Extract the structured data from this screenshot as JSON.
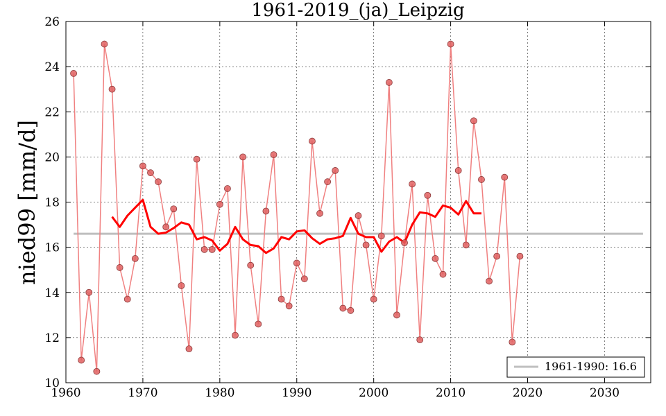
{
  "chart_data": {
    "type": "line",
    "title": "1961-2019_(ja)_Leipzig",
    "xlabel": "",
    "ylabel": "nied99 [mm/d]",
    "xlim": [
      1960,
      2036
    ],
    "ylim": [
      10,
      26
    ],
    "xticks": [
      1960,
      1970,
      1980,
      1990,
      2000,
      2010,
      2020,
      2030
    ],
    "yticks": [
      10,
      12,
      14,
      16,
      18,
      20,
      22,
      24,
      26
    ],
    "grid": true,
    "legend_position": "bottom-right",
    "colors": {
      "annual": "#f08080",
      "annual_marker_fill": "#e06060",
      "annual_marker_edge": "#8b3a3a",
      "moving_average": "#ff0000",
      "baseline": "#bfbfbf"
    },
    "series": [
      {
        "name": "annual",
        "x": [
          1961,
          1962,
          1963,
          1964,
          1965,
          1966,
          1967,
          1968,
          1969,
          1970,
          1971,
          1972,
          1973,
          1974,
          1975,
          1976,
          1977,
          1978,
          1979,
          1980,
          1981,
          1982,
          1983,
          1984,
          1985,
          1986,
          1987,
          1988,
          1989,
          1990,
          1991,
          1992,
          1993,
          1994,
          1995,
          1996,
          1997,
          1998,
          1999,
          2000,
          2001,
          2002,
          2003,
          2004,
          2005,
          2006,
          2007,
          2008,
          2009,
          2010,
          2011,
          2012,
          2013,
          2014,
          2015,
          2016,
          2017,
          2018,
          2019
        ],
        "values": [
          23.7,
          11.0,
          14.0,
          10.5,
          25.0,
          23.0,
          15.1,
          13.7,
          15.5,
          19.6,
          19.3,
          18.9,
          16.9,
          17.7,
          14.3,
          11.5,
          19.9,
          15.9,
          15.9,
          17.9,
          18.6,
          12.1,
          20.0,
          15.2,
          12.6,
          17.6,
          20.1,
          13.7,
          13.4,
          15.3,
          14.6,
          20.7,
          17.5,
          18.9,
          19.4,
          13.3,
          13.2,
          17.4,
          16.1,
          13.7,
          16.5,
          23.3,
          13.0,
          16.2,
          18.8,
          11.9,
          18.3,
          15.5,
          14.8,
          25.0,
          19.4,
          16.1,
          21.6,
          19.0,
          14.5,
          15.6,
          19.1,
          11.8,
          15.6
        ]
      },
      {
        "name": "moving_average",
        "x": [
          1966,
          1967,
          1968,
          1969,
          1970,
          1971,
          1972,
          1973,
          1974,
          1975,
          1976,
          1977,
          1978,
          1979,
          1980,
          1981,
          1982,
          1983,
          1984,
          1985,
          1986,
          1987,
          1988,
          1989,
          1990,
          1991,
          1992,
          1993,
          1994,
          1995,
          1996,
          1997,
          1998,
          1999,
          2000,
          2001,
          2002,
          2003,
          2004,
          2005,
          2006,
          2007,
          2008,
          2009,
          2010,
          2011,
          2012,
          2013,
          2014
        ],
        "values": [
          17.35,
          16.9,
          17.4,
          17.75,
          18.1,
          16.9,
          16.6,
          16.65,
          16.85,
          17.1,
          17.0,
          16.35,
          16.45,
          16.3,
          15.85,
          16.15,
          16.9,
          16.35,
          16.1,
          16.05,
          15.75,
          15.95,
          16.45,
          16.35,
          16.7,
          16.75,
          16.4,
          16.15,
          16.35,
          16.4,
          16.5,
          17.3,
          16.6,
          16.45,
          16.45,
          15.8,
          16.25,
          16.45,
          16.2,
          17.0,
          17.55,
          17.5,
          17.35,
          17.85,
          17.75,
          17.45,
          18.05,
          17.5,
          17.5
        ]
      }
    ],
    "baseline": {
      "label": "1961-1990: 16.6",
      "value": 16.6,
      "x_range": [
        1961,
        2035
      ]
    }
  }
}
